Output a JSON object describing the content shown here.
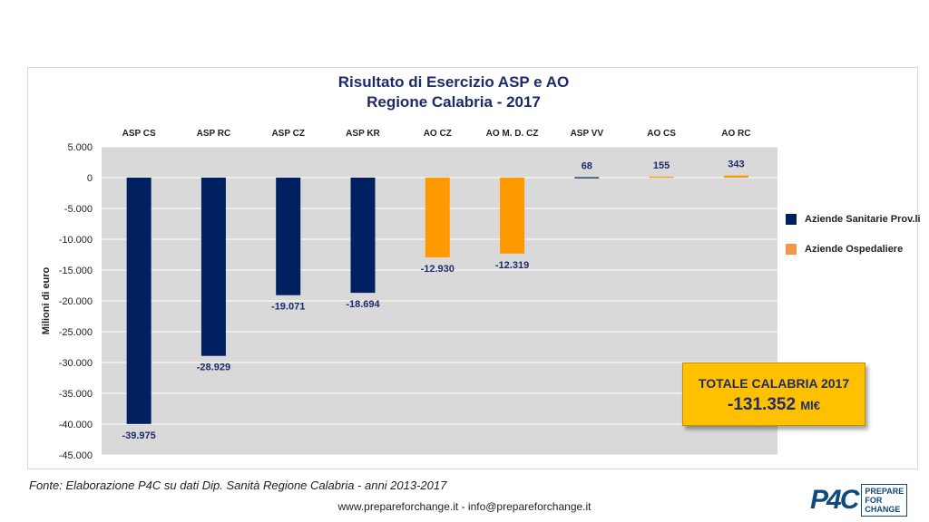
{
  "chart_data": {
    "type": "bar",
    "title_line1": "Risultato di Esercizio ASP e AO",
    "title_line2": "Regione Calabria - 2017",
    "ylabel": "Milioni di euro",
    "ylim": [
      -45000,
      5000
    ],
    "yticks": [
      "5.000",
      "0",
      "-5.000",
      "-10.000",
      "-15.000",
      "-20.000",
      "-25.000",
      "-30.000",
      "-35.000",
      "-40.000",
      "-45.000"
    ],
    "ytick_values": [
      5000,
      0,
      -5000,
      -10000,
      -15000,
      -20000,
      -25000,
      -30000,
      -35000,
      -40000,
      -45000
    ],
    "categories": [
      "ASP CS",
      "ASP RC",
      "ASP CZ",
      "ASP KR",
      "AO CZ",
      "AO M. D. CZ",
      "ASP VV",
      "AO CS",
      "AO RC"
    ],
    "values": [
      -39975,
      -28929,
      -19071,
      -18694,
      -12930,
      -12319,
      68,
      155,
      343
    ],
    "value_labels": [
      "-39.975",
      "-28.929",
      "-19.071",
      "-18.694",
      "-12.930",
      "-12.319",
      "68",
      "155",
      "343"
    ],
    "series_index": [
      0,
      0,
      0,
      0,
      1,
      1,
      0,
      1,
      1
    ],
    "series": [
      {
        "name": "Aziende Sanitarie Prov.li",
        "color": "#002060"
      },
      {
        "name": "Aziende Ospedaliere",
        "color": "#f79646"
      }
    ],
    "bar_colors": [
      "#002060",
      "#ff9900"
    ],
    "grid": true,
    "legend_position": "right"
  },
  "totale": {
    "label": "TOTALE CALABRIA 2017",
    "value": "-131.352",
    "unit": "Ml€"
  },
  "fonte": "Fonte: Elaborazione P4C su dati Dip. Sanità Regione Calabria - anni 2013-2017",
  "footer": "www.prepareforchange.it - info@prepareforchange.it",
  "logo": {
    "mark": "P4C",
    "box_line1": "PREPARE",
    "box_line2": "FOR",
    "box_line3": "CHANGE"
  }
}
